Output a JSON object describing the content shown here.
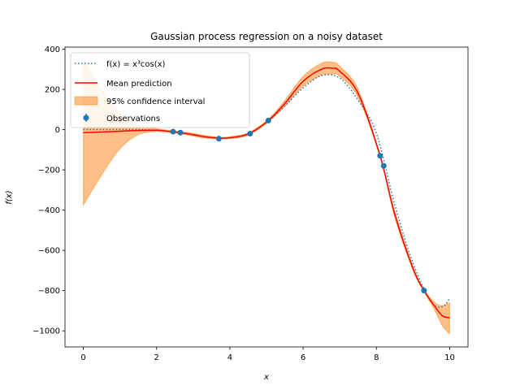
{
  "chart_data": {
    "type": "line",
    "title": "Gaussian process regression on a noisy dataset",
    "xlabel": "x",
    "ylabel": "f(x)",
    "xlim": [
      -0.5,
      10.5
    ],
    "ylim": [
      -1080,
      410
    ],
    "x_ticks": [
      0,
      2,
      4,
      6,
      8,
      10
    ],
    "x_tick_labels": [
      "0",
      "2",
      "4",
      "6",
      "8",
      "10"
    ],
    "y_ticks": [
      400,
      200,
      0,
      -200,
      -400,
      -600,
      -800,
      -1000
    ],
    "y_tick_labels": [
      "400",
      "200",
      "0",
      "−200",
      "−400",
      "−600",
      "−800",
      "−1000"
    ],
    "grid": false,
    "legend_position": "top-left",
    "legend": [
      {
        "label": "f(x) = x³cos(x)",
        "style": "dotted-line",
        "color": "#1f77b4"
      },
      {
        "label": "Mean prediction",
        "style": "line",
        "color": "#ff0000"
      },
      {
        "label": "95% confidence interval",
        "style": "patch",
        "color": "#ff7f0e"
      },
      {
        "label": "Observations",
        "style": "errorbar-marker",
        "color": "#1f77b4"
      }
    ],
    "series": [
      {
        "name": "Mean prediction",
        "color": "#ff0000",
        "x": [
          0,
          0.5,
          1,
          1.5,
          2,
          2.4,
          2.65,
          3,
          3.3,
          3.7,
          4,
          4.5,
          5.05,
          5.5,
          6,
          6.5,
          6.8,
          7,
          7.5,
          8.1,
          8.5,
          9,
          9.3,
          9.6,
          9.8,
          10
        ],
        "y": [
          -15,
          -12,
          -8,
          -4,
          -3,
          -10,
          -15,
          -25,
          -35,
          -42,
          -40,
          -22,
          45,
          130,
          240,
          300,
          305,
          290,
          180,
          -130,
          -420,
          -690,
          -800,
          -880,
          -925,
          -935
        ]
      },
      {
        "name": "95% confidence interval upper",
        "color": "#ff7f0e",
        "x": [
          0,
          0.5,
          1,
          1.5,
          2,
          2.4,
          2.65,
          3,
          3.3,
          3.7,
          4,
          4.5,
          5.05,
          5.5,
          6,
          6.5,
          6.8,
          7,
          7.5,
          8.1,
          8.5,
          9,
          9.3,
          9.6,
          9.8,
          10
        ],
        "y": [
          345,
          200,
          80,
          20,
          5,
          -5,
          -10,
          -18,
          -28,
          -38,
          -35,
          -16,
          52,
          145,
          265,
          330,
          335,
          315,
          200,
          -125,
          -405,
          -680,
          -795,
          -860,
          -875,
          -860
        ]
      },
      {
        "name": "95% confidence interval lower",
        "color": "#ff7f0e",
        "x": [
          0,
          0.5,
          1,
          1.5,
          2,
          2.4,
          2.65,
          3,
          3.3,
          3.7,
          4,
          4.5,
          5.05,
          5.5,
          6,
          6.5,
          6.8,
          7,
          7.5,
          8.1,
          8.5,
          9,
          9.3,
          9.6,
          9.8,
          10
        ],
        "y": [
          -375,
          -225,
          -95,
          -25,
          -10,
          -15,
          -20,
          -32,
          -42,
          -46,
          -45,
          -28,
          38,
          115,
          215,
          270,
          275,
          265,
          160,
          -135,
          -435,
          -700,
          -805,
          -900,
          -975,
          -1015
        ]
      },
      {
        "name": "f(x) = x³cos(x)",
        "color": "#1f77b4",
        "x": [
          0,
          0.5,
          1,
          1.5,
          2,
          2.5,
          3,
          3.5,
          4,
          4.5,
          5,
          5.5,
          6,
          6.5,
          7,
          7.5,
          8,
          8.5,
          9,
          9.5,
          9.8,
          10
        ],
        "y": [
          0,
          0.1,
          0.5,
          0.2,
          -3.3,
          -12.5,
          -26.7,
          -40.2,
          -41.8,
          -19.1,
          35.5,
          118.1,
          207.4,
          268.3,
          256.1,
          146.1,
          -18.6,
          -372.0,
          -663.9,
          -856.7,
          -880.0,
          -839.1
        ]
      }
    ],
    "observations": {
      "name": "Observations",
      "color": "#1f77b4",
      "x": [
        2.45,
        2.65,
        3.7,
        4.55,
        5.05,
        8.1,
        8.2,
        9.3
      ],
      "y": [
        -10,
        -15,
        -45,
        -20,
        45,
        -130,
        -180,
        -800
      ]
    }
  }
}
